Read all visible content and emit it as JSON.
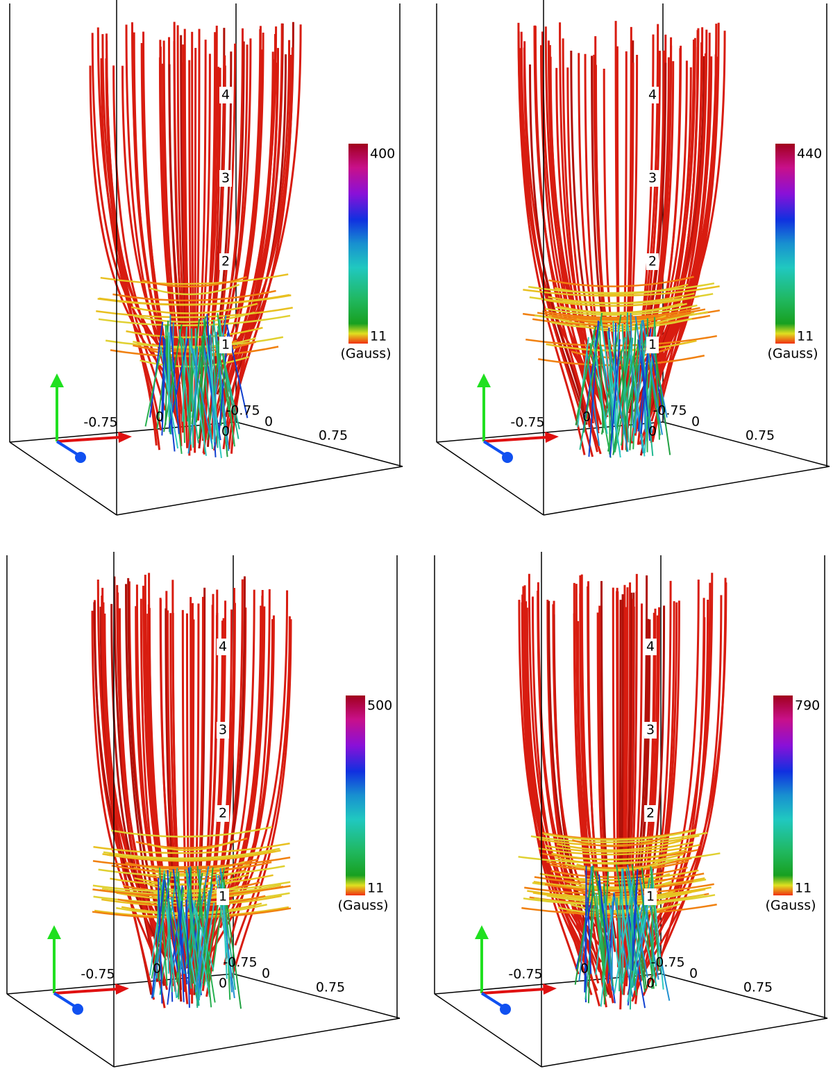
{
  "panels": [
    {
      "colorbar": {
        "max": 400,
        "min": 11,
        "unit": "(Gauss)"
      },
      "height_labels": [
        1,
        2,
        3,
        4
      ],
      "axis_labels": [
        -0.75,
        0,
        -0.75,
        0,
        0.75,
        0
      ]
    },
    {
      "colorbar": {
        "max": 440,
        "min": 11,
        "unit": "(Gauss)"
      },
      "height_labels": [
        1,
        2,
        3,
        4
      ],
      "axis_labels": [
        -0.75,
        0,
        -0.75,
        0,
        0.75,
        0
      ]
    },
    {
      "colorbar": {
        "max": 500,
        "min": 11,
        "unit": "(Gauss)"
      },
      "height_labels": [
        1,
        2,
        3,
        4
      ],
      "axis_labels": [
        -0.75,
        0,
        -0.75,
        0,
        0.75,
        0
      ]
    },
    {
      "colorbar": {
        "max": 790,
        "min": 11,
        "unit": "(Gauss)"
      },
      "height_labels": [
        1,
        2,
        3,
        4
      ],
      "axis_labels": [
        -0.75,
        0,
        -0.75,
        0,
        0.75,
        0
      ]
    }
  ]
}
